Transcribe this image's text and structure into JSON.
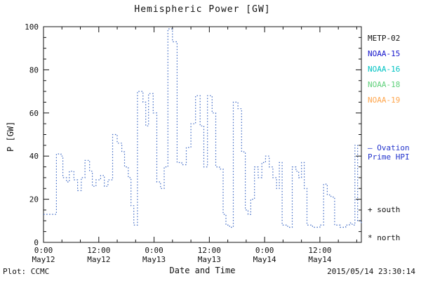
{
  "chart": {
    "title": "Hemispheric Power [GW]",
    "ylabel": "P [GW]",
    "xlabel": "Date and Time",
    "footer_left": "Plot: CCMC",
    "footer_right": "2015/05/14 23:30:14",
    "legend_satellites": [
      {
        "label": "METP-02",
        "color": "#111111"
      },
      {
        "label": "NOAA-15",
        "color": "#1414cc"
      },
      {
        "label": "NOAA-16",
        "color": "#00c3c3"
      },
      {
        "label": "NOAA-18",
        "color": "#5fd07a"
      },
      {
        "label": "NOAA-19",
        "color": "#ffa64d"
      }
    ],
    "legend_line": {
      "lines": [
        "– Ovation",
        "Prime HPI"
      ],
      "color": "#2233cc"
    },
    "marker_south": "+ south",
    "marker_north": "* north"
  },
  "chart_data": {
    "type": "line",
    "title": "Hemispheric Power [GW]",
    "xlabel": "Date and Time",
    "ylabel": "P [GW]",
    "ylim": [
      0,
      100
    ],
    "x_range_hours_from_may12_0000": [
      0,
      69
    ],
    "grid": false,
    "legend_position": "right",
    "y_ticks": [
      0,
      20,
      40,
      60,
      80,
      100
    ],
    "y_minor_step": 5,
    "x_minor_step_hours": 4,
    "x_ticks": [
      {
        "hour": 0,
        "time": "0:00",
        "date": "May12"
      },
      {
        "hour": 12,
        "time": "12:00",
        "date": "May12"
      },
      {
        "hour": 24,
        "time": "0:00",
        "date": "May13"
      },
      {
        "hour": 36,
        "time": "12:00",
        "date": "May13"
      },
      {
        "hour": 48,
        "time": "0:00",
        "date": "May14"
      },
      {
        "hour": 60,
        "time": "12:00",
        "date": "May14"
      }
    ],
    "series": [
      {
        "name": "Ovation Prime HPI",
        "color": "#3b67c4",
        "line_style": "dotted",
        "draw": "step-after",
        "points_hour_gw": [
          [
            0,
            13
          ],
          [
            2.8,
            41
          ],
          [
            3.8,
            40
          ],
          [
            4.2,
            30
          ],
          [
            5,
            28
          ],
          [
            5.6,
            33
          ],
          [
            6.6,
            29
          ],
          [
            7.4,
            24
          ],
          [
            8.2,
            30
          ],
          [
            9,
            38
          ],
          [
            10,
            33
          ],
          [
            10.6,
            26
          ],
          [
            11.4,
            29
          ],
          [
            12.4,
            31
          ],
          [
            13.2,
            26
          ],
          [
            14,
            29
          ],
          [
            15,
            50
          ],
          [
            16,
            46
          ],
          [
            17,
            42
          ],
          [
            17.6,
            35
          ],
          [
            18.4,
            30
          ],
          [
            19,
            17
          ],
          [
            19.6,
            8
          ],
          [
            20.4,
            70
          ],
          [
            21.6,
            65
          ],
          [
            22.2,
            54
          ],
          [
            22.8,
            69
          ],
          [
            23.8,
            60
          ],
          [
            24.6,
            28
          ],
          [
            25.4,
            25
          ],
          [
            26.2,
            35
          ],
          [
            27,
            99
          ],
          [
            28,
            93
          ],
          [
            29,
            37
          ],
          [
            30,
            36
          ],
          [
            31,
            44
          ],
          [
            32,
            55
          ],
          [
            33,
            68
          ],
          [
            34,
            54
          ],
          [
            34.8,
            35
          ],
          [
            35.6,
            68
          ],
          [
            36.6,
            60
          ],
          [
            37.4,
            35
          ],
          [
            38.2,
            34
          ],
          [
            39,
            13
          ],
          [
            39.6,
            8
          ],
          [
            40.4,
            7
          ],
          [
            41.2,
            65
          ],
          [
            42.2,
            62
          ],
          [
            43,
            42
          ],
          [
            43.8,
            15
          ],
          [
            44.4,
            13
          ],
          [
            45,
            20
          ],
          [
            45.8,
            35
          ],
          [
            46.6,
            30
          ],
          [
            47.4,
            37
          ],
          [
            48.2,
            40
          ],
          [
            49,
            35
          ],
          [
            49.8,
            30
          ],
          [
            50.6,
            25
          ],
          [
            51.2,
            37
          ],
          [
            51.8,
            8
          ],
          [
            53,
            7
          ],
          [
            54,
            35
          ],
          [
            54.8,
            33
          ],
          [
            55.4,
            30
          ],
          [
            56,
            37
          ],
          [
            56.6,
            25
          ],
          [
            57.2,
            8
          ],
          [
            58.4,
            7
          ],
          [
            60,
            8
          ],
          [
            60.8,
            27
          ],
          [
            61.6,
            22
          ],
          [
            62.4,
            21
          ],
          [
            63.2,
            8
          ],
          [
            64.4,
            7
          ],
          [
            65.6,
            8
          ],
          [
            66.4,
            9
          ],
          [
            67,
            8
          ],
          [
            67.6,
            45
          ],
          [
            68.2,
            10
          ],
          [
            69,
            9
          ]
        ]
      }
    ]
  }
}
